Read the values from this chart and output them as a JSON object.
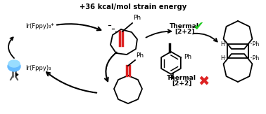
{
  "title": "+36 kcal/mol strain energy",
  "bg_color": "#ffffff",
  "text_color": "#000000",
  "red_color": "#dd2222",
  "green_color": "#22cc22",
  "ir_star_text": "Ir(Fppy)₃*",
  "ir_text": "Ir(Fppy)₃",
  "ph_label": "Ph",
  "h_label": "H",
  "lw": 1.3
}
